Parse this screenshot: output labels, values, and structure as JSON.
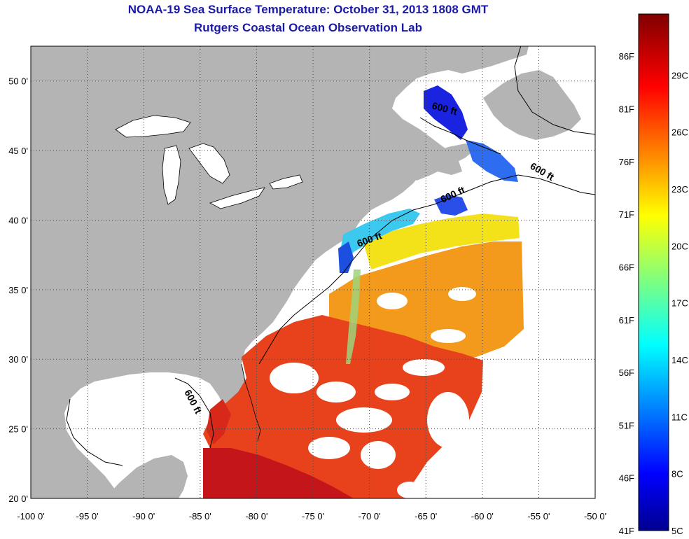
{
  "title": "NOAA-19 Sea Surface Temperature:  October 31, 2013 1808 GMT",
  "subtitle": "Rutgers Coastal Ocean Observation Lab",
  "map": {
    "lat_labels": [
      "50 0'",
      "45 0'",
      "40 0'",
      "35 0'",
      "30 0'",
      "25 0'",
      "20 0'"
    ],
    "lat_values": [
      50,
      45,
      40,
      35,
      30,
      25,
      20
    ],
    "lon_labels": [
      "-100 0'",
      "-95 0'",
      "-90 0'",
      "-85 0'",
      "-80 0'",
      "-75 0'",
      "-70 0'",
      "-65 0'",
      "-60 0'",
      "-55 0'",
      "-50 0'"
    ],
    "lon_values": [
      -100,
      -95,
      -90,
      -85,
      -80,
      -75,
      -70,
      -65,
      -60,
      -55,
      -50
    ],
    "contour_label": "600 ft",
    "land_color": "#b4b4b4",
    "ocean_color": "#ffffff",
    "grid": "dotted"
  },
  "colorbar": {
    "f_labels": [
      "86F",
      "81F",
      "76F",
      "71F",
      "66F",
      "61F",
      "56F",
      "51F",
      "46F",
      "41F"
    ],
    "c_labels": [
      "29C",
      "26C",
      "23C",
      "20C",
      "17C",
      "14C",
      "11C",
      "8C",
      "5C"
    ],
    "colormap": "jet",
    "min_color": "#00008f",
    "max_color": "#800000"
  }
}
